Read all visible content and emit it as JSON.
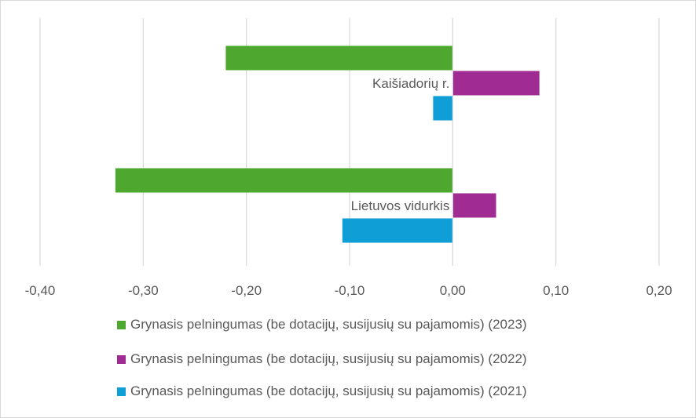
{
  "chart_data": {
    "type": "bar",
    "orientation": "horizontal",
    "categories": [
      "Kaišiadorių r.",
      "Lietuvos vidurkis"
    ],
    "series": [
      {
        "name": "Grynasis pelningumas (be dotacijų, susijusių su pajamomis) (2023)",
        "color": "#4ea72e",
        "values": [
          -0.22,
          -0.327
        ]
      },
      {
        "name": "Grynasis pelningumas (be dotacijų, susijusių su pajamomis) (2022)",
        "color": "#a02b93",
        "values": [
          0.084,
          0.042
        ]
      },
      {
        "name": "Grynasis pelningumas (be dotacijų, susijusių su pajamomis) (2021)",
        "color": "#0f9ed5",
        "values": [
          -0.019,
          -0.107
        ]
      }
    ],
    "x_ticks": [
      "-0,40",
      "-0,30",
      "-0,20",
      "-0,10",
      "0,00",
      "0,10",
      "0,20"
    ],
    "xlim": [
      -0.4,
      0.2
    ],
    "grid": true,
    "legend_position": "bottom"
  }
}
